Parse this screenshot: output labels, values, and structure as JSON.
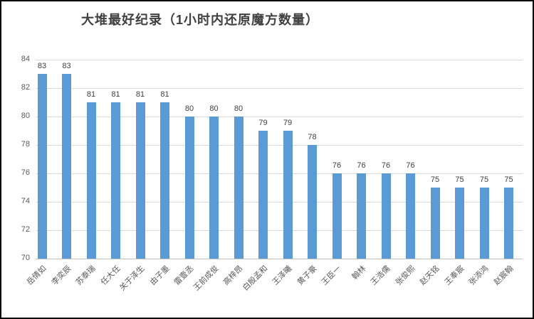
{
  "window": {
    "background": "#ffffff",
    "border_color": "#000000"
  },
  "chart_data": {
    "type": "bar",
    "title": "大堆最好纪录（1小时内还原魔方数量）",
    "categories": [
      "岳倩如",
      "李奕辰",
      "苏泰瑞",
      "任大任",
      "关于泽生",
      "由子墨",
      "雷壹丞",
      "王前成俊",
      "高梓昂",
      "白殷孟和",
      "王泽曦",
      "黄子豪",
      "王臣一",
      "翰林",
      "王浩儒",
      "张俊熙",
      "赵天铭",
      "王奉宸",
      "张添鸿",
      "赵宸翰"
    ],
    "values": [
      83,
      83,
      81,
      81,
      81,
      81,
      80,
      80,
      80,
      79,
      79,
      78,
      76,
      76,
      76,
      76,
      75,
      75,
      75,
      75
    ],
    "xlabel": "",
    "ylabel": "",
    "ylim": [
      70,
      84
    ],
    "yticks": [
      70,
      72,
      74,
      76,
      78,
      80,
      82,
      84
    ],
    "grid": true,
    "legend_position": "none",
    "data_labels": true,
    "x_label_rotation_deg": 45,
    "colors": {
      "bar": "#5b9bd5",
      "title": "#404040",
      "value_label": "#404040",
      "axis_tick_label": "#595959",
      "category_label": "#595959",
      "gridline": "#d9d9d9",
      "axis_line": "#bfbfbf"
    }
  }
}
